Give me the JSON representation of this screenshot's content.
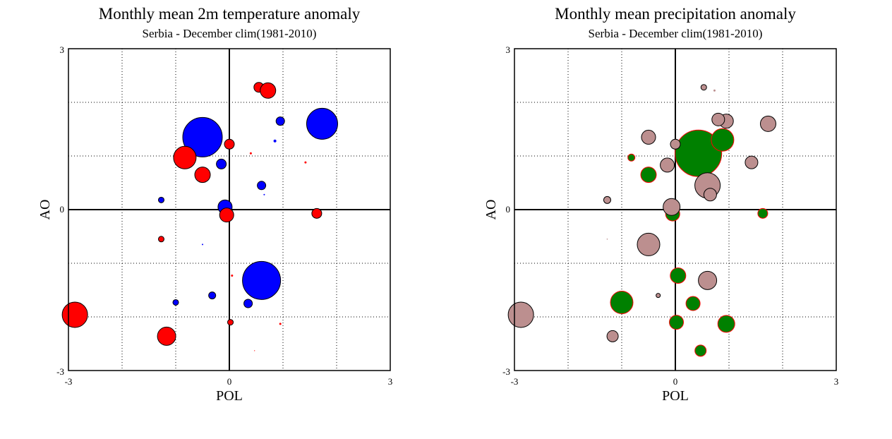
{
  "chart_data": [
    {
      "type": "scatter",
      "title": "Monthly mean 2m temperature anomaly",
      "subtitle": "Serbia - December  clim(1981-2010)",
      "xlabel": "POL",
      "ylabel": "AO",
      "xlim": [
        -3,
        3
      ],
      "ylim": [
        -3,
        3
      ],
      "xticks": [
        "-3",
        "0",
        "3"
      ],
      "yticks": [
        "-3",
        "0",
        "3"
      ],
      "grid": true,
      "colors": {
        "positive": "#ff0000",
        "negative": "#0000ff"
      },
      "points": [
        {
          "x": -0.5,
          "y": 1.35,
          "r": 28,
          "c": "negative"
        },
        {
          "x": 1.73,
          "y": 1.6,
          "r": 22,
          "c": "negative"
        },
        {
          "x": 0.6,
          "y": -1.32,
          "r": 27,
          "c": "negative"
        },
        {
          "x": 0.95,
          "y": 1.65,
          "r": 6,
          "c": "negative"
        },
        {
          "x": -0.15,
          "y": 0.85,
          "r": 7,
          "c": "negative"
        },
        {
          "x": 0.6,
          "y": 0.45,
          "r": 6,
          "c": "negative"
        },
        {
          "x": -0.08,
          "y": 0.05,
          "r": 10,
          "c": "negative"
        },
        {
          "x": -1.27,
          "y": 0.18,
          "r": 4,
          "c": "negative"
        },
        {
          "x": -0.32,
          "y": -1.6,
          "r": 5,
          "c": "negative"
        },
        {
          "x": -1.0,
          "y": -1.73,
          "r": 4,
          "c": "negative"
        },
        {
          "x": 0.35,
          "y": -1.75,
          "r": 6,
          "c": "negative"
        },
        {
          "x": 0.85,
          "y": 1.28,
          "r": 2,
          "c": "negative"
        },
        {
          "x": -0.5,
          "y": -0.65,
          "r": 1,
          "c": "negative"
        },
        {
          "x": 0.65,
          "y": 0.28,
          "r": 1,
          "c": "negative"
        },
        {
          "x": 0.55,
          "y": 2.28,
          "r": 7,
          "c": "positive"
        },
        {
          "x": 0.72,
          "y": 2.22,
          "r": 11,
          "c": "positive"
        },
        {
          "x": -0.83,
          "y": 0.97,
          "r": 16,
          "c": "positive"
        },
        {
          "x": -0.5,
          "y": 0.65,
          "r": 11,
          "c": "positive"
        },
        {
          "x": 0.0,
          "y": 1.22,
          "r": 7,
          "c": "positive"
        },
        {
          "x": -0.05,
          "y": -0.1,
          "r": 10,
          "c": "positive"
        },
        {
          "x": 1.63,
          "y": -0.07,
          "r": 7,
          "c": "positive"
        },
        {
          "x": -2.88,
          "y": -1.96,
          "r": 18,
          "c": "positive"
        },
        {
          "x": -1.17,
          "y": -2.36,
          "r": 13,
          "c": "positive"
        },
        {
          "x": -1.27,
          "y": -0.55,
          "r": 4,
          "c": "positive"
        },
        {
          "x": 0.02,
          "y": -2.1,
          "r": 4,
          "c": "positive"
        },
        {
          "x": 0.4,
          "y": 1.05,
          "r": 1.5,
          "c": "positive"
        },
        {
          "x": 1.42,
          "y": 0.88,
          "r": 1.5,
          "c": "positive"
        },
        {
          "x": 0.05,
          "y": -1.23,
          "r": 1.5,
          "c": "positive"
        },
        {
          "x": 0.95,
          "y": -2.13,
          "r": 1.5,
          "c": "positive"
        },
        {
          "x": 0.47,
          "y": -2.63,
          "r": 0.6,
          "c": "positive"
        }
      ]
    },
    {
      "type": "scatter",
      "title": "Monthly mean precipitation anomaly",
      "subtitle": "Serbia - December  clim(1981-2010)",
      "xlabel": "POL",
      "ylabel": "AO",
      "xlim": [
        -3,
        3
      ],
      "ylim": [
        -3,
        3
      ],
      "xticks": [
        "-3",
        "0",
        "3"
      ],
      "yticks": [
        "-3",
        "0",
        "3"
      ],
      "grid": true,
      "colors": {
        "positive": "#008000",
        "negative": "#bc8f8f"
      },
      "points": [
        {
          "x": 0.43,
          "y": 1.05,
          "r": 33,
          "c": "positive"
        },
        {
          "x": 0.88,
          "y": 1.3,
          "r": 16,
          "c": "positive"
        },
        {
          "x": -0.5,
          "y": 0.65,
          "r": 11,
          "c": "positive"
        },
        {
          "x": -0.82,
          "y": 0.97,
          "r": 5,
          "c": "positive"
        },
        {
          "x": -0.05,
          "y": -0.08,
          "r": 10,
          "c": "positive"
        },
        {
          "x": 1.63,
          "y": -0.07,
          "r": 7,
          "c": "positive"
        },
        {
          "x": 0.05,
          "y": -1.23,
          "r": 11,
          "c": "positive"
        },
        {
          "x": -1.0,
          "y": -1.73,
          "r": 16,
          "c": "positive"
        },
        {
          "x": 0.33,
          "y": -1.75,
          "r": 10,
          "c": "positive"
        },
        {
          "x": 0.02,
          "y": -2.1,
          "r": 10,
          "c": "positive"
        },
        {
          "x": 0.95,
          "y": -2.13,
          "r": 12,
          "c": "positive"
        },
        {
          "x": 0.47,
          "y": -2.63,
          "r": 8,
          "c": "positive"
        },
        {
          "x": -2.88,
          "y": -1.96,
          "r": 18,
          "c": "negative"
        },
        {
          "x": -0.5,
          "y": -0.65,
          "r": 16,
          "c": "negative"
        },
        {
          "x": -0.07,
          "y": 0.05,
          "r": 12,
          "c": "negative"
        },
        {
          "x": 0.6,
          "y": 0.45,
          "r": 18,
          "c": "negative"
        },
        {
          "x": 0.65,
          "y": 0.28,
          "r": 9,
          "c": "negative"
        },
        {
          "x": -0.15,
          "y": 0.83,
          "r": 10,
          "c": "negative"
        },
        {
          "x": -0.5,
          "y": 1.35,
          "r": 10,
          "c": "negative"
        },
        {
          "x": 0.0,
          "y": 1.22,
          "r": 7,
          "c": "negative"
        },
        {
          "x": 0.95,
          "y": 1.65,
          "r": 10,
          "c": "negative"
        },
        {
          "x": 1.73,
          "y": 1.6,
          "r": 11,
          "c": "negative"
        },
        {
          "x": 1.42,
          "y": 0.88,
          "r": 9,
          "c": "negative"
        },
        {
          "x": 0.8,
          "y": 1.68,
          "r": 9,
          "c": "negative"
        },
        {
          "x": 0.6,
          "y": -1.32,
          "r": 13,
          "c": "negative"
        },
        {
          "x": -1.17,
          "y": -2.36,
          "r": 8,
          "c": "negative"
        },
        {
          "x": -1.27,
          "y": 0.18,
          "r": 5,
          "c": "negative"
        },
        {
          "x": 0.53,
          "y": 2.28,
          "r": 4,
          "c": "negative"
        },
        {
          "x": -0.32,
          "y": -1.6,
          "r": 3,
          "c": "negative"
        },
        {
          "x": 0.73,
          "y": 2.22,
          "r": 1.5,
          "c": "negative"
        },
        {
          "x": -1.27,
          "y": -0.55,
          "r": 0.8,
          "c": "negative"
        }
      ]
    }
  ]
}
